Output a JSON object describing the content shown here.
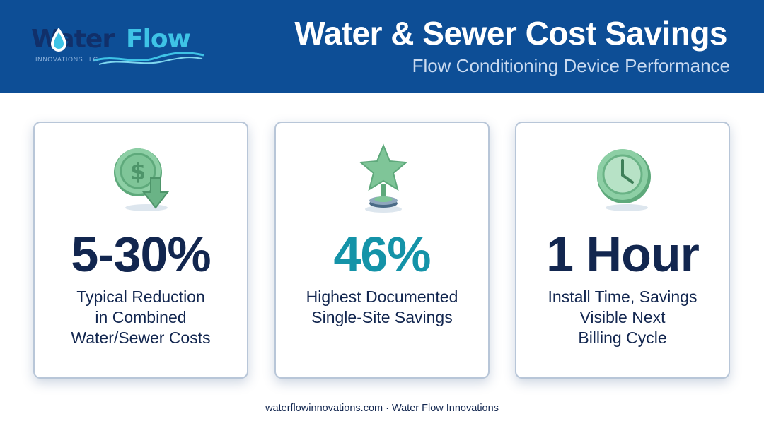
{
  "header": {
    "logo": {
      "word_water": "Water",
      "word_flow": "Flow",
      "tagline": "INNOVATIONS LLC"
    },
    "title": "Water & Sewer Cost Savings",
    "subtitle": "Flow Conditioning Device Performance",
    "background_color": "#0d4e96"
  },
  "cards": [
    {
      "icon": "dollar-down-arrow-icon",
      "metric": "5-30%",
      "metric_color": "#12264f",
      "description": [
        "Typical Reduction",
        "in Combined",
        "Water/Sewer Costs"
      ]
    },
    {
      "icon": "star-trophy-icon",
      "metric": "46%",
      "metric_color": "#1493a8",
      "description": [
        "Highest Documented",
        "Single-Site Savings"
      ]
    },
    {
      "icon": "clock-icon",
      "metric": "1 Hour",
      "metric_color": "#12264f",
      "description": [
        "Install Time, Savings",
        "Visible Next",
        "Billing Cycle"
      ]
    }
  ],
  "footer": "waterflowinnovations.com · Water Flow Innovations",
  "colors": {
    "brand_navy": "#12264f",
    "brand_teal": "#1493a8",
    "icon_green": "#7fc598"
  }
}
